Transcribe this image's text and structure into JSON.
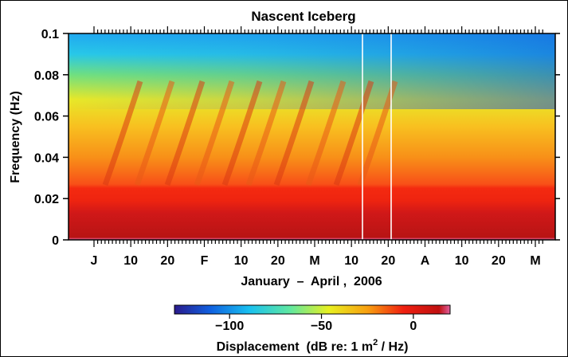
{
  "chart_data": {
    "type": "heatmap",
    "title": "Nascent Iceberg",
    "ylabel": "Frequency (Hz)",
    "xlabel": "January  –  April ,  2006",
    "ylim": [
      0,
      0.1
    ],
    "y_ticks": [
      "0",
      "0.02",
      "0.04",
      "0.06",
      "0.08",
      "0.1"
    ],
    "x_ticks": [
      "J",
      "10",
      "20",
      "F",
      "10",
      "20",
      "M",
      "10",
      "20",
      "A",
      "10",
      "20",
      "M"
    ],
    "colorbar": {
      "label_prefix": "Displacement  (dB re: 1 m",
      "label_sup": "2",
      "label_suffix": " / Hz)",
      "range": [
        -130,
        20
      ],
      "ticks": [
        "−100",
        "−50",
        "0"
      ],
      "colors": [
        "#2a1a8c",
        "#1060e0",
        "#18c0f0",
        "#60e8a0",
        "#e8f020",
        "#f8a010",
        "#f02010",
        "#c01010",
        "#e060a0"
      ]
    },
    "approx_levels_db": [
      {
        "frequency_hz": 0.001,
        "db": 15
      },
      {
        "frequency_hz": 0.01,
        "db": 5
      },
      {
        "frequency_hz": 0.02,
        "db": 0
      },
      {
        "frequency_hz": 0.03,
        "db": -15
      },
      {
        "frequency_hz": 0.05,
        "db": -30
      },
      {
        "frequency_hz": 0.07,
        "db": -50
      },
      {
        "frequency_hz": 0.09,
        "db": -80
      },
      {
        "frequency_hz": 0.1,
        "db": -100
      }
    ]
  }
}
